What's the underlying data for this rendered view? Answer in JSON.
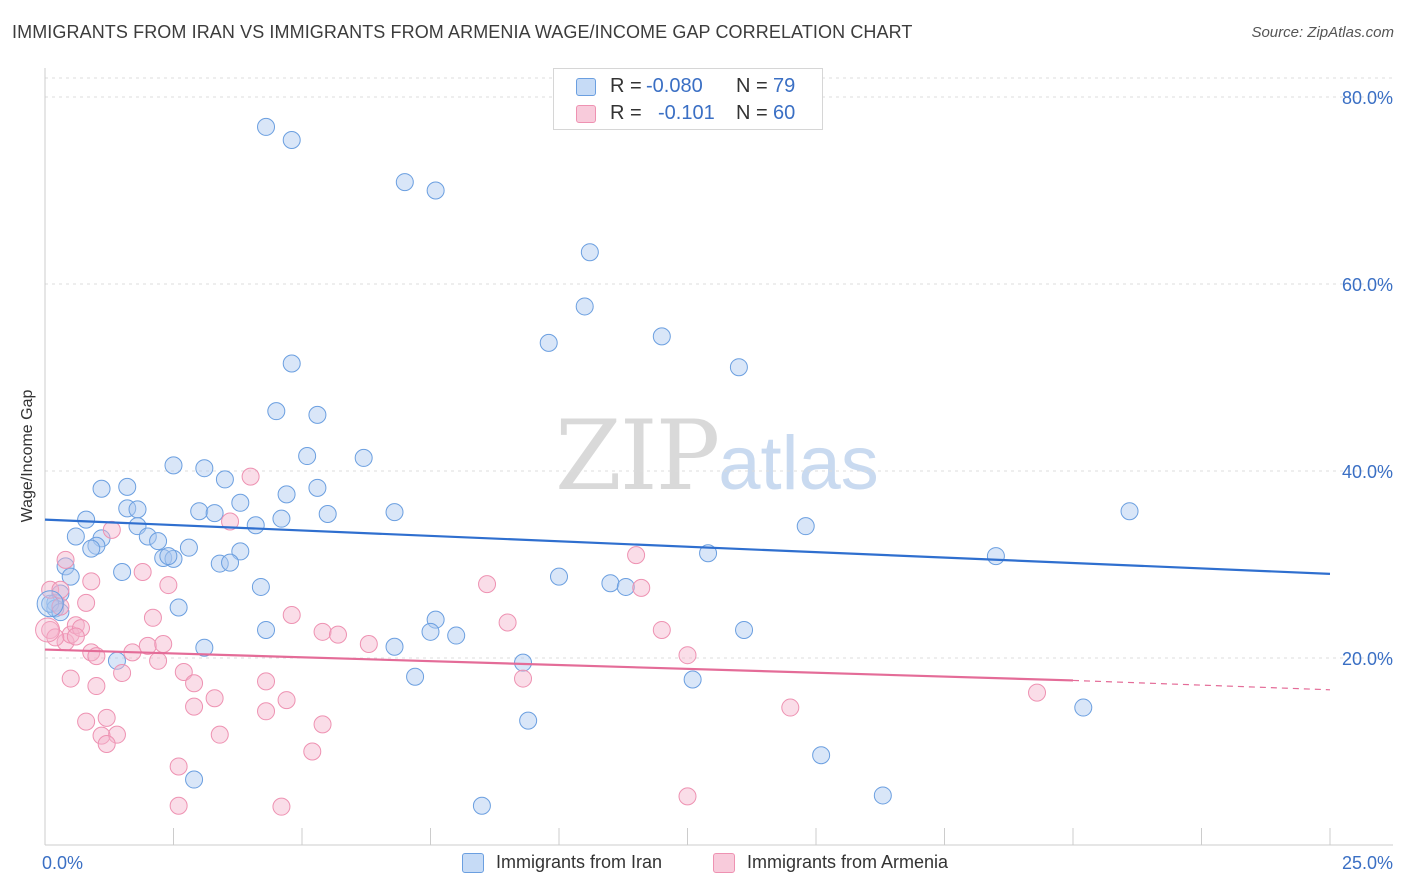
{
  "title": "IMMIGRANTS FROM IRAN VS IMMIGRANTS FROM ARMENIA WAGE/INCOME GAP CORRELATION CHART",
  "source": "Source: ZipAtlas.com",
  "watermark": {
    "zip": "ZIP",
    "atlas": "atlas"
  },
  "legend_top": [
    {
      "r_label": "R =",
      "r_value": "-0.080",
      "n_label": "N =",
      "n_value": "79"
    },
    {
      "r_label": "R =",
      "r_value": "-0.101",
      "n_label": "N =",
      "n_value": "60"
    }
  ],
  "legend_bottom": [
    "Immigrants from Iran",
    "Immigrants from Armenia"
  ],
  "chart_data": {
    "type": "scatter",
    "title": "IMMIGRANTS FROM IRAN VS IMMIGRANTS FROM ARMENIA WAGE/INCOME GAP CORRELATION CHART",
    "xlabel": "",
    "ylabel": "Wage/Income Gap",
    "xlim": [
      0,
      25
    ],
    "ylim": [
      0,
      80
    ],
    "x_tick_labels": [
      "0.0%",
      "25.0%"
    ],
    "y_tick_labels": [
      "20.0%",
      "40.0%",
      "60.0%",
      "80.0%"
    ],
    "y_ticks": [
      20,
      40,
      60,
      80
    ],
    "colors": {
      "iran": "#6b9fe0",
      "armenia": "#ee92b2",
      "iran_line": "#2f6fcf",
      "armenia_line": "#e46c98"
    },
    "series": [
      {
        "name": "Immigrants from Iran",
        "r": -0.08,
        "n": 79,
        "trend": {
          "x": [
            0,
            25
          ],
          "y": [
            34.8,
            29.0
          ]
        },
        "points": [
          [
            4.3,
            76.8
          ],
          [
            4.8,
            75.4
          ],
          [
            7.0,
            70.9
          ],
          [
            7.6,
            70.0
          ],
          [
            10.6,
            63.4
          ],
          [
            10.5,
            57.6
          ],
          [
            9.8,
            53.7
          ],
          [
            12.0,
            54.4
          ],
          [
            13.5,
            51.1
          ],
          [
            4.8,
            51.5
          ],
          [
            4.5,
            46.4
          ],
          [
            5.3,
            46.0
          ],
          [
            6.2,
            41.4
          ],
          [
            5.1,
            41.6
          ],
          [
            2.5,
            40.6
          ],
          [
            3.1,
            40.3
          ],
          [
            3.5,
            39.1
          ],
          [
            1.6,
            38.3
          ],
          [
            1.1,
            38.1
          ],
          [
            5.3,
            38.2
          ],
          [
            4.7,
            37.5
          ],
          [
            3.8,
            36.6
          ],
          [
            1.6,
            36.0
          ],
          [
            1.8,
            35.9
          ],
          [
            3.0,
            35.7
          ],
          [
            3.3,
            35.5
          ],
          [
            6.8,
            35.6
          ],
          [
            5.5,
            35.4
          ],
          [
            4.6,
            34.9
          ],
          [
            4.1,
            34.2
          ],
          [
            1.8,
            34.1
          ],
          [
            0.8,
            34.8
          ],
          [
            14.8,
            34.1
          ],
          [
            21.1,
            35.7
          ],
          [
            0.6,
            33.0
          ],
          [
            1.1,
            32.8
          ],
          [
            2.0,
            33.0
          ],
          [
            2.2,
            32.5
          ],
          [
            1.0,
            32.0
          ],
          [
            0.9,
            31.7
          ],
          [
            2.8,
            31.8
          ],
          [
            3.8,
            31.4
          ],
          [
            2.3,
            30.7
          ],
          [
            2.5,
            30.6
          ],
          [
            3.4,
            30.1
          ],
          [
            3.6,
            30.2
          ],
          [
            12.9,
            31.2
          ],
          [
            18.5,
            30.9
          ],
          [
            0.4,
            29.8
          ],
          [
            1.5,
            29.2
          ],
          [
            0.5,
            28.7
          ],
          [
            10.0,
            28.7
          ],
          [
            11.0,
            28.0
          ],
          [
            11.3,
            27.6
          ],
          [
            4.2,
            27.6
          ],
          [
            0.3,
            26.9
          ],
          [
            0.2,
            25.9
          ],
          [
            0.2,
            25.3
          ],
          [
            2.6,
            25.4
          ],
          [
            7.6,
            24.1
          ],
          [
            4.3,
            23.0
          ],
          [
            7.5,
            22.8
          ],
          [
            8.0,
            22.4
          ],
          [
            13.6,
            23.0
          ],
          [
            3.1,
            21.1
          ],
          [
            6.8,
            21.2
          ],
          [
            1.4,
            19.7
          ],
          [
            9.3,
            19.5
          ],
          [
            7.2,
            18.0
          ],
          [
            12.6,
            17.7
          ],
          [
            20.2,
            14.7
          ],
          [
            9.4,
            13.3
          ],
          [
            15.1,
            9.6
          ],
          [
            2.9,
            7.0
          ],
          [
            8.5,
            4.2
          ],
          [
            16.3,
            5.3
          ],
          [
            0.1,
            25.8
          ],
          [
            0.3,
            24.9
          ],
          [
            2.4,
            30.9
          ]
        ]
      },
      {
        "name": "Immigrants from Armenia",
        "r": -0.101,
        "n": 60,
        "trend": {
          "x": [
            0,
            20.0
          ],
          "y": [
            20.9,
            17.6
          ]
        },
        "trend_extension": {
          "x": [
            20.0,
            25
          ],
          "y": [
            17.6,
            16.6
          ]
        },
        "points": [
          [
            0.1,
            23.0
          ],
          [
            0.1,
            27.3
          ],
          [
            0.3,
            27.3
          ],
          [
            0.4,
            30.5
          ],
          [
            0.3,
            25.5
          ],
          [
            0.4,
            21.7
          ],
          [
            0.5,
            22.5
          ],
          [
            0.6,
            23.5
          ],
          [
            0.7,
            23.2
          ],
          [
            0.9,
            28.2
          ],
          [
            0.8,
            25.9
          ],
          [
            0.9,
            20.6
          ],
          [
            1.3,
            33.7
          ],
          [
            1.0,
            20.2
          ],
          [
            0.5,
            17.8
          ],
          [
            1.0,
            17.0
          ],
          [
            1.5,
            18.4
          ],
          [
            0.8,
            13.2
          ],
          [
            1.2,
            13.6
          ],
          [
            1.4,
            11.8
          ],
          [
            1.1,
            11.7
          ],
          [
            1.2,
            10.8
          ],
          [
            1.9,
            29.2
          ],
          [
            2.4,
            27.8
          ],
          [
            2.1,
            24.3
          ],
          [
            2.0,
            21.3
          ],
          [
            2.3,
            21.5
          ],
          [
            1.7,
            20.6
          ],
          [
            2.2,
            19.7
          ],
          [
            2.7,
            18.5
          ],
          [
            2.9,
            17.3
          ],
          [
            3.3,
            15.7
          ],
          [
            2.9,
            14.8
          ],
          [
            3.4,
            11.8
          ],
          [
            3.6,
            34.6
          ],
          [
            4.0,
            39.4
          ],
          [
            4.8,
            24.6
          ],
          [
            5.4,
            22.8
          ],
          [
            5.7,
            22.5
          ],
          [
            6.3,
            21.5
          ],
          [
            4.3,
            17.5
          ],
          [
            4.7,
            15.5
          ],
          [
            4.3,
            14.3
          ],
          [
            5.4,
            12.9
          ],
          [
            5.2,
            10.0
          ],
          [
            2.6,
            8.4
          ],
          [
            2.6,
            4.2
          ],
          [
            4.6,
            4.1
          ],
          [
            8.6,
            27.9
          ],
          [
            9.0,
            23.8
          ],
          [
            9.3,
            17.8
          ],
          [
            11.5,
            31.0
          ],
          [
            11.6,
            27.5
          ],
          [
            12.0,
            23.0
          ],
          [
            12.5,
            20.3
          ],
          [
            14.5,
            14.7
          ],
          [
            12.5,
            5.2
          ],
          [
            19.3,
            16.3
          ],
          [
            0.2,
            22.2
          ],
          [
            0.6,
            22.3
          ]
        ]
      }
    ]
  }
}
